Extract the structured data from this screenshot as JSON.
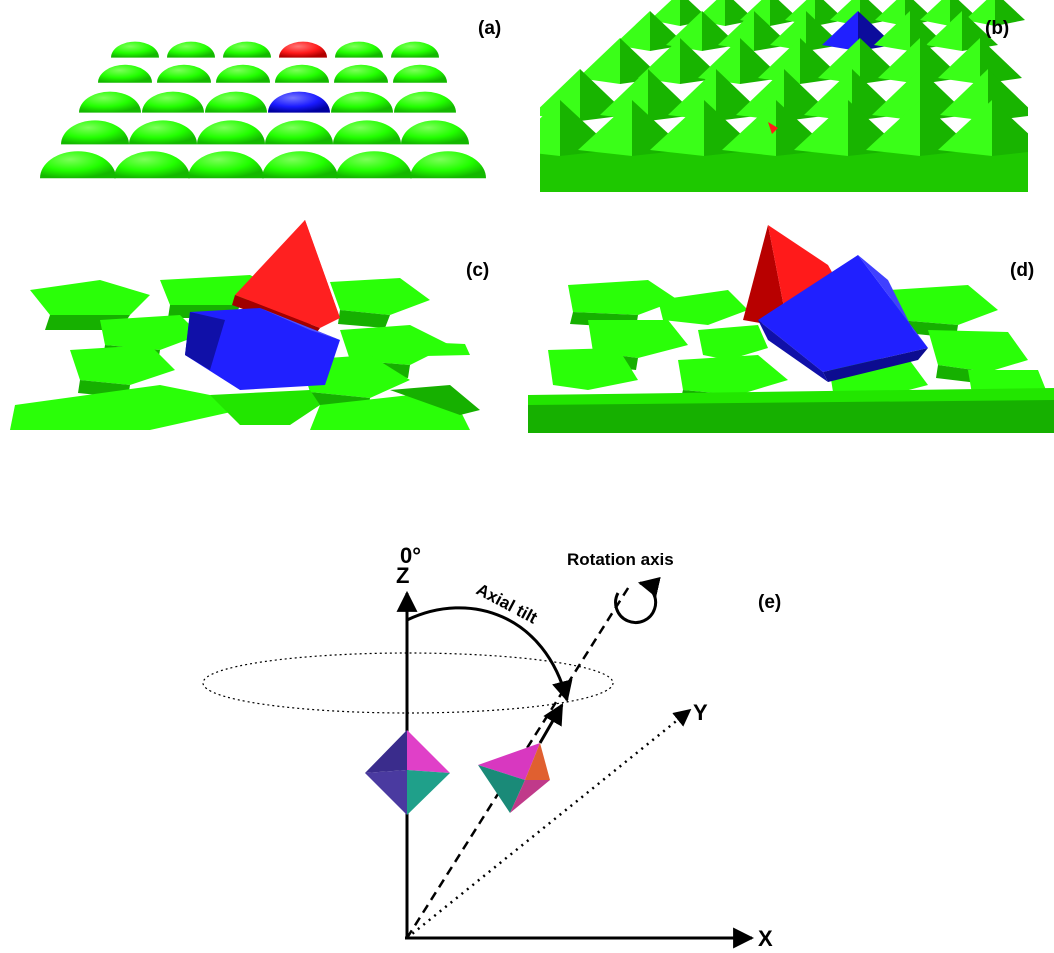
{
  "panels": {
    "a": {
      "label": "(a)"
    },
    "b": {
      "label": "(b)"
    },
    "c": {
      "label": "(c)"
    },
    "d": {
      "label": "(d)"
    },
    "e": {
      "label": "(e)",
      "angle_label": "0°",
      "z_axis_label": "Z",
      "x_axis_label": "X",
      "y_axis_label": "Y",
      "tilt_label": "Axial tilt",
      "rotation_axis_label": "Rotation axis"
    }
  },
  "colors": {
    "grain": "#22ff00",
    "grain_dark": "#119a00",
    "highlight_red": "#ff1a1a",
    "highlight_blue": "#1a1aff",
    "octahedron_magenta": "#e040c8",
    "octahedron_teal": "#1fa08a",
    "octahedron_indigo": "#3a2c8c"
  }
}
